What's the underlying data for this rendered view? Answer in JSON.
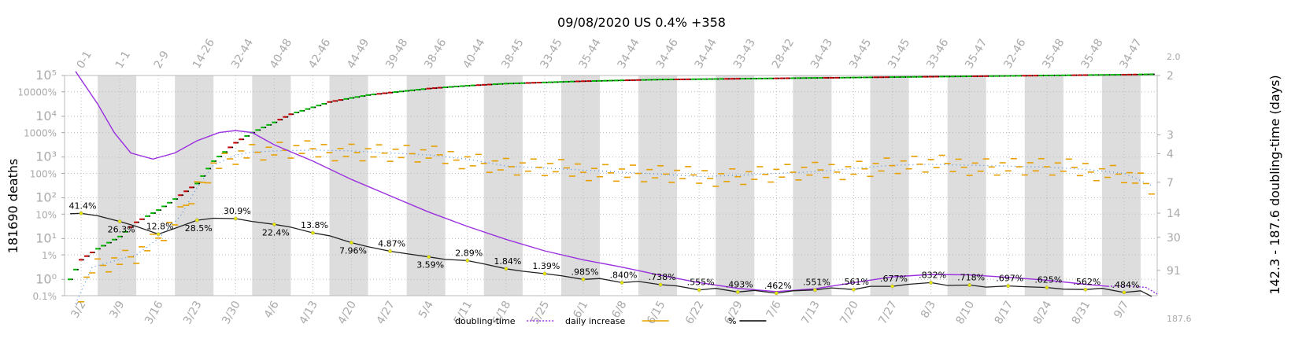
{
  "chart_data": {
    "type": "line",
    "title": "09/08/2020 US 0.4% +358",
    "ylabel_left": "181690 deaths",
    "ylabel_right": "142.3 - 187.6 doubling-time (days)",
    "x_tick_labels": [
      "3/2",
      "3/9",
      "3/16",
      "3/23",
      "3/30",
      "4/6",
      "4/13",
      "4/20",
      "4/27",
      "5/4",
      "5/11",
      "5/18",
      "5/25",
      "6/1",
      "6/8",
      "6/15",
      "6/22",
      "6/29",
      "7/6",
      "7/13",
      "7/20",
      "7/27",
      "8/3",
      "8/10",
      "8/17",
      "8/24",
      "8/31",
      "9/7"
    ],
    "top_tick_labels": [
      "0-1",
      "1-1",
      "2-9",
      "14-26",
      "32-44",
      "40-48",
      "42-46",
      "44-49",
      "39-48",
      "38-46",
      "40-44",
      "38-45",
      "33-45",
      "35-44",
      "34-44",
      "34-46",
      "34-44",
      "33-43",
      "28-42",
      "34-43",
      "34-45",
      "31-45",
      "33-46",
      "35-47",
      "32-46",
      "35-48",
      "35-48",
      "34-47"
    ],
    "left_ticks": [
      {
        "label": "10⁵",
        "exp": 5,
        "big": true
      },
      {
        "label": "10000%",
        "exp": 4.6,
        "big": false
      },
      {
        "label": "10⁴",
        "exp": 4,
        "big": true
      },
      {
        "label": "1000%",
        "exp": 3.6,
        "big": false
      },
      {
        "label": "10³",
        "exp": 3,
        "big": true
      },
      {
        "label": "100%",
        "exp": 2.6,
        "big": false
      },
      {
        "label": "10²",
        "exp": 2,
        "big": true
      },
      {
        "label": "10%",
        "exp": 1.6,
        "big": false
      },
      {
        "label": "10¹",
        "exp": 1,
        "big": true
      },
      {
        "label": "1%",
        "exp": 0.6,
        "big": false
      },
      {
        "label": "10⁰",
        "exp": 0,
        "big": true
      },
      {
        "label": "0.1%",
        "exp": -0.4,
        "big": false
      }
    ],
    "right_ticks": [
      {
        "label": "2.0",
        "frac": -0.09,
        "small": true
      },
      {
        "label": "2",
        "frac": 0.0,
        "small": false
      },
      {
        "label": "3",
        "frac": 0.27,
        "small": false
      },
      {
        "label": "4",
        "frac": 0.355,
        "small": false
      },
      {
        "label": "7",
        "frac": 0.485,
        "small": false
      },
      {
        "label": "14",
        "frac": 0.625,
        "small": false
      },
      {
        "label": "30",
        "frac": 0.735,
        "small": false
      },
      {
        "label": "91",
        "frac": 0.885,
        "small": false
      },
      {
        "label": "187.6",
        "frac": 1.1,
        "small": true
      }
    ],
    "pct_annotations": [
      {
        "day": 0,
        "label": "41.4%"
      },
      {
        "day": 7,
        "label": "26.3%"
      },
      {
        "day": 14,
        "label": "12.8%"
      },
      {
        "day": 21,
        "label": "28.5%"
      },
      {
        "day": 28,
        "label": "30.9%"
      },
      {
        "day": 35,
        "label": "22.4%"
      },
      {
        "day": 42,
        "label": "13.8%"
      },
      {
        "day": 49,
        "label": "7.96%"
      },
      {
        "day": 56,
        "label": "4.87%"
      },
      {
        "day": 63,
        "label": "3.59%"
      },
      {
        "day": 70,
        "label": "2.89%"
      },
      {
        "day": 77,
        "label": "1.84%"
      },
      {
        "day": 84,
        "label": "1.39%"
      },
      {
        "day": 91,
        "label": ".985%"
      },
      {
        "day": 98,
        "label": ".840%"
      },
      {
        "day": 105,
        "label": ".738%"
      },
      {
        "day": 112,
        "label": ".555%"
      },
      {
        "day": 119,
        "label": ".493%"
      },
      {
        "day": 126,
        "label": ".462%"
      },
      {
        "day": 133,
        "label": ".551%"
      },
      {
        "day": 140,
        "label": ".561%"
      },
      {
        "day": 147,
        "label": ".677%"
      },
      {
        "day": 154,
        "label": ".832%"
      },
      {
        "day": 161,
        "label": ".718%"
      },
      {
        "day": 168,
        "label": ".697%"
      },
      {
        "day": 175,
        "label": ".625%"
      },
      {
        "day": 182,
        "label": ".562%"
      },
      {
        "day": 189,
        "label": ".484%"
      }
    ],
    "pct_line_points": [
      [
        -2,
        1.61
      ],
      [
        0,
        1.62
      ],
      [
        3,
        1.56
      ],
      [
        7,
        1.42
      ],
      [
        10,
        1.3
      ],
      [
        14,
        1.11
      ],
      [
        17,
        1.25
      ],
      [
        21,
        1.45
      ],
      [
        24,
        1.5
      ],
      [
        28,
        1.49
      ],
      [
        31,
        1.42
      ],
      [
        35,
        1.35
      ],
      [
        38,
        1.28
      ],
      [
        42,
        1.14
      ],
      [
        45,
        1.07
      ],
      [
        49,
        0.9
      ],
      [
        52,
        0.8
      ],
      [
        56,
        0.69
      ],
      [
        59,
        0.63
      ],
      [
        63,
        0.55
      ],
      [
        66,
        0.49
      ],
      [
        70,
        0.46
      ],
      [
        73,
        0.38
      ],
      [
        77,
        0.26
      ],
      [
        80,
        0.2
      ],
      [
        84,
        0.14
      ],
      [
        87,
        0.09
      ],
      [
        91,
        0.0
      ],
      [
        94,
        0.02
      ],
      [
        98,
        -0.08
      ],
      [
        101,
        -0.05
      ],
      [
        105,
        -0.13
      ],
      [
        108,
        -0.16
      ],
      [
        112,
        -0.26
      ],
      [
        115,
        -0.22
      ],
      [
        119,
        -0.31
      ],
      [
        122,
        -0.27
      ],
      [
        126,
        -0.34
      ],
      [
        129,
        -0.28
      ],
      [
        133,
        -0.26
      ],
      [
        136,
        -0.21
      ],
      [
        140,
        -0.25
      ],
      [
        143,
        -0.17
      ],
      [
        147,
        -0.17
      ],
      [
        150,
        -0.12
      ],
      [
        154,
        -0.08
      ],
      [
        157,
        -0.15
      ],
      [
        161,
        -0.14
      ],
      [
        164,
        -0.19
      ],
      [
        168,
        -0.16
      ],
      [
        171,
        -0.18
      ],
      [
        175,
        -0.2
      ],
      [
        178,
        -0.24
      ],
      [
        182,
        -0.25
      ],
      [
        185,
        -0.22
      ],
      [
        189,
        -0.32
      ],
      [
        192,
        -0.28
      ],
      [
        194,
        -0.42
      ]
    ],
    "deaths_points": [
      [
        -2,
        0.0
      ],
      [
        0,
        0.48
      ],
      [
        3,
        0.75
      ],
      [
        7,
        1.05
      ],
      [
        10,
        1.4
      ],
      [
        14,
        1.7
      ],
      [
        17,
        1.97
      ],
      [
        21,
        2.35
      ],
      [
        24,
        2.9
      ],
      [
        28,
        3.35
      ],
      [
        31,
        3.6
      ],
      [
        35,
        3.85
      ],
      [
        38,
        4.05
      ],
      [
        42,
        4.22
      ],
      [
        45,
        4.35
      ],
      [
        49,
        4.45
      ],
      [
        52,
        4.52
      ],
      [
        56,
        4.58
      ],
      [
        63,
        4.68
      ],
      [
        70,
        4.75
      ],
      [
        77,
        4.8
      ],
      [
        84,
        4.83
      ],
      [
        91,
        4.86
      ],
      [
        98,
        4.88
      ],
      [
        105,
        4.9
      ],
      [
        112,
        4.91
      ],
      [
        119,
        4.92
      ],
      [
        126,
        4.93
      ],
      [
        133,
        4.94
      ],
      [
        140,
        4.95
      ],
      [
        147,
        4.96
      ],
      [
        154,
        4.97
      ],
      [
        161,
        4.98
      ],
      [
        168,
        4.99
      ],
      [
        175,
        5.0
      ],
      [
        182,
        5.01
      ],
      [
        189,
        5.02
      ],
      [
        194,
        5.03
      ]
    ],
    "doubling_points": [
      [
        -1,
        5.1
      ],
      [
        3,
        4.3
      ],
      [
        6,
        3.6
      ],
      [
        9,
        3.1
      ],
      [
        13,
        2.95
      ],
      [
        17,
        3.1
      ],
      [
        21,
        3.4
      ],
      [
        25,
        3.6
      ],
      [
        28,
        3.65
      ],
      [
        31,
        3.6
      ],
      [
        35,
        3.3
      ],
      [
        42,
        2.9
      ],
      [
        49,
        2.45
      ],
      [
        56,
        2.05
      ],
      [
        63,
        1.65
      ],
      [
        70,
        1.3
      ],
      [
        77,
        0.98
      ],
      [
        84,
        0.7
      ],
      [
        91,
        0.48
      ],
      [
        98,
        0.3
      ],
      [
        105,
        0.1
      ],
      [
        112,
        -0.08
      ],
      [
        119,
        -0.22
      ],
      [
        126,
        -0.3
      ],
      [
        133,
        -0.23
      ],
      [
        140,
        -0.08
      ],
      [
        147,
        0.06
      ],
      [
        154,
        0.12
      ],
      [
        161,
        0.11
      ],
      [
        168,
        0.05
      ],
      [
        175,
        -0.02
      ],
      [
        182,
        -0.12
      ],
      [
        186,
        -0.17
      ]
    ],
    "doubling_dotted_points": [
      [
        186,
        -0.17
      ],
      [
        190,
        -0.16
      ],
      [
        193,
        -0.2
      ],
      [
        195,
        -0.36
      ]
    ],
    "daily_increase_points": [
      [
        -1,
        -0.6
      ],
      [
        2,
        0.3
      ],
      [
        6,
        0.45
      ],
      [
        10,
        0.6
      ],
      [
        14,
        1.0
      ],
      [
        18,
        1.55
      ],
      [
        21,
        2.25
      ],
      [
        24,
        2.8
      ],
      [
        28,
        3.05
      ],
      [
        31,
        3.12
      ],
      [
        35,
        3.15
      ],
      [
        42,
        3.17
      ],
      [
        49,
        3.15
      ],
      [
        56,
        3.1
      ],
      [
        63,
        3.05
      ],
      [
        70,
        2.95
      ],
      [
        77,
        2.78
      ],
      [
        84,
        2.73
      ],
      [
        91,
        2.68
      ],
      [
        98,
        2.63
      ],
      [
        105,
        2.58
      ],
      [
        112,
        2.52
      ],
      [
        119,
        2.55
      ],
      [
        126,
        2.6
      ],
      [
        133,
        2.64
      ],
      [
        140,
        2.72
      ],
      [
        147,
        2.8
      ],
      [
        154,
        2.82
      ],
      [
        161,
        2.8
      ],
      [
        168,
        2.78
      ],
      [
        175,
        2.75
      ],
      [
        182,
        2.7
      ],
      [
        189,
        2.6
      ],
      [
        194,
        2.3
      ]
    ],
    "xlim": [
      -3,
      195
    ],
    "ylim": [
      -0.4,
      5
    ],
    "legend": [
      {
        "name": "doubling-time",
        "color": "#9b30e0",
        "style": "dotted"
      },
      {
        "name": "daily increase",
        "color": "#e8a000",
        "style": "solid"
      },
      {
        "name": "%",
        "color": "#000000",
        "style": "solid"
      }
    ],
    "colors": {
      "deaths_up": "#00b400",
      "deaths_down": "#c00000",
      "pct_line": "#222222",
      "doubling": "#9b30e0",
      "daily": "#e8a000",
      "band": "#dddddd",
      "marker": "#e6e600"
    },
    "grid": true,
    "legend_position": "bottom-center"
  }
}
